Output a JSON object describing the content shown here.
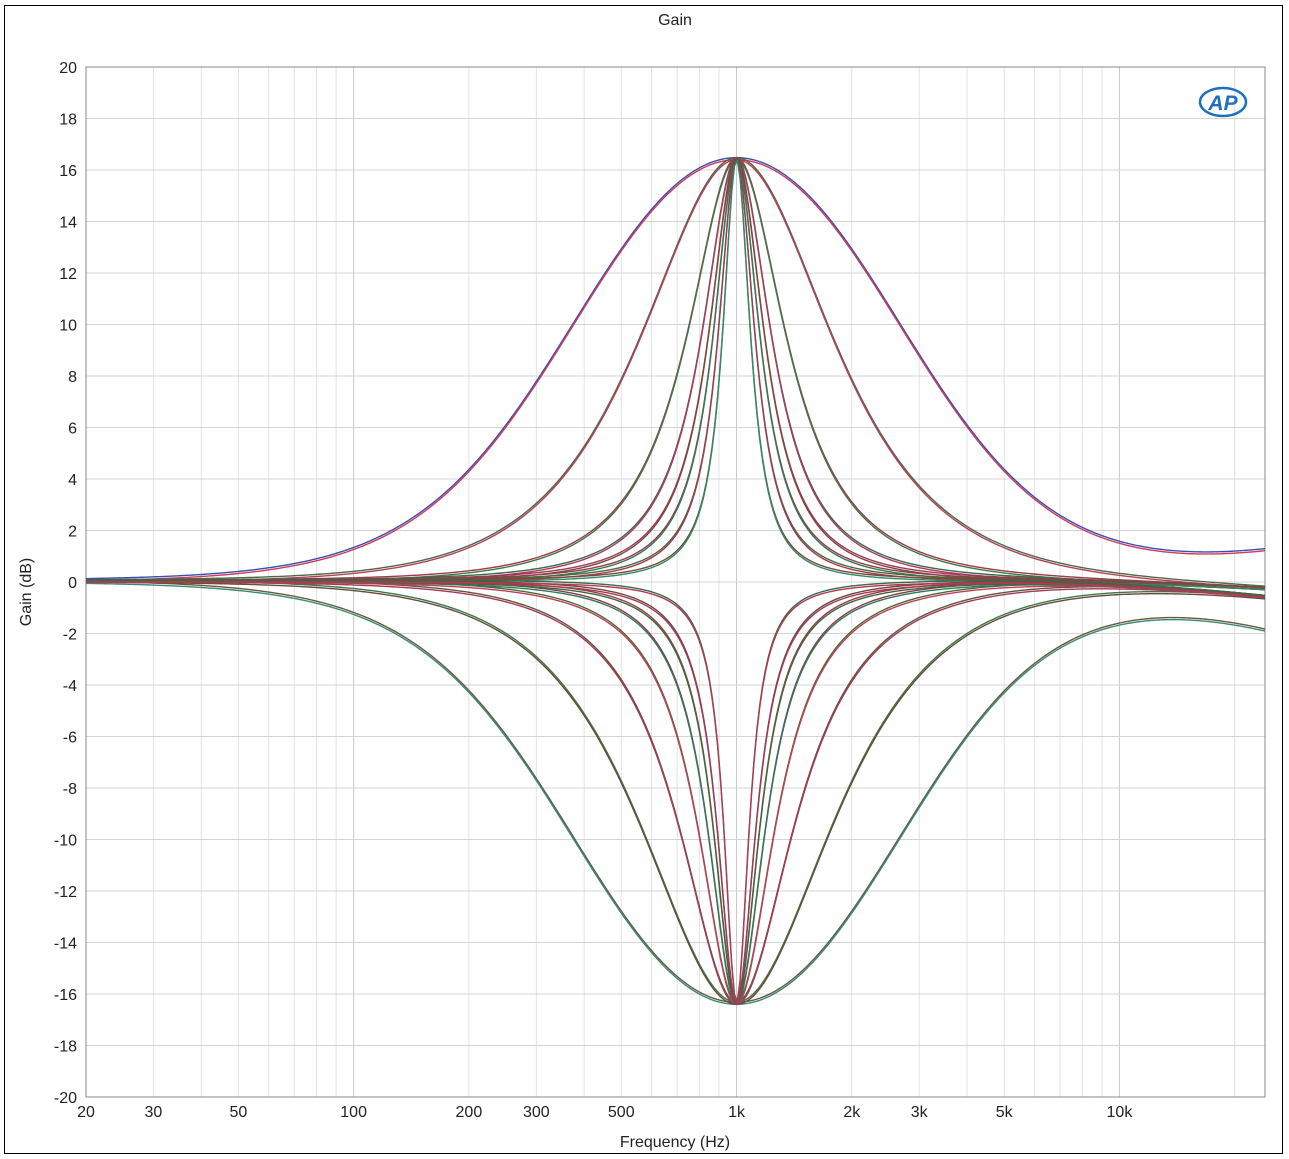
{
  "chart_data": {
    "type": "line",
    "title": "Gain",
    "xlabel": "Frequency (Hz)",
    "ylabel": "Gain (dB)",
    "x_scale": "log",
    "xlim": [
      20,
      24000
    ],
    "ylim": [
      -20,
      20
    ],
    "grid": true,
    "legend": "none",
    "center_frequency_hz": 1000,
    "boost_peak_db": 16.4,
    "cut_trough_db": -16.4,
    "x_ticks": [
      {
        "value": 20,
        "label": "20"
      },
      {
        "value": 30,
        "label": "30"
      },
      {
        "value": 50,
        "label": "50"
      },
      {
        "value": 100,
        "label": "100"
      },
      {
        "value": 200,
        "label": "200"
      },
      {
        "value": 300,
        "label": "300"
      },
      {
        "value": 500,
        "label": "500"
      },
      {
        "value": 1000,
        "label": "1k"
      },
      {
        "value": 2000,
        "label": "2k"
      },
      {
        "value": 3000,
        "label": "3k"
      },
      {
        "value": 5000,
        "label": "5k"
      },
      {
        "value": 10000,
        "label": "10k"
      }
    ],
    "y_ticks": [
      "20",
      "18",
      "16",
      "14",
      "12",
      "10",
      "8",
      "6",
      "4",
      "2",
      "0",
      "-2",
      "-4",
      "-6",
      "-8",
      "-10",
      "-12",
      "-14",
      "-16",
      "-18",
      "-20"
    ],
    "series": [
      {
        "kind": "boost",
        "q": 0.35,
        "color": "#d03a5a",
        "pair_color": "#3c4fb0",
        "offset_db": 0.0,
        "end_db": 1.0
      },
      {
        "kind": "boost",
        "q": 0.7,
        "color": "#b5405a",
        "pair_color": "#4e6a4a",
        "offset_db": 0.0,
        "end_db": -0.3
      },
      {
        "kind": "boost",
        "q": 1.4,
        "color": "#3d7a4a",
        "pair_color": "#a03a4a",
        "offset_db": 0.0,
        "end_db": -0.3
      },
      {
        "kind": "boost",
        "q": 2.0,
        "color": "#b03a5a",
        "pair_color": "#3c6a4a",
        "offset_db": 0.0,
        "end_db": -0.3
      },
      {
        "kind": "boost",
        "q": 2.5,
        "color": "#7a4a3a",
        "pair_color": "#9a3a5a",
        "offset_db": 0.0,
        "end_db": -0.3
      },
      {
        "kind": "boost",
        "q": 3.0,
        "color": "#2f7a5a",
        "pair_color": "#9a3a4a",
        "offset_db": 0.0,
        "end_db": -0.3
      },
      {
        "kind": "boost",
        "q": 3.8,
        "color": "#a13b55",
        "pair_color": "#4a6a3a",
        "offset_db": 0.0,
        "end_db": -0.3
      },
      {
        "kind": "boost",
        "q": 5.0,
        "color": "#2f8a66",
        "pair_color": "#7a4a3a",
        "offset_db": 0.0,
        "end_db": -0.3
      },
      {
        "kind": "cut",
        "q": 0.35,
        "color": "#3a8a7a",
        "pair_color": "#6a5a3a",
        "offset_db": 0.0,
        "end_db": -1.7
      },
      {
        "kind": "cut",
        "q": 0.7,
        "color": "#6a4a3a",
        "pair_color": "#3a7a4a",
        "offset_db": 0.0,
        "end_db": -0.6
      },
      {
        "kind": "cut",
        "q": 1.2,
        "color": "#a8385a",
        "pair_color": "#5a5a3a",
        "offset_db": 0.0,
        "end_db": -0.6
      },
      {
        "kind": "cut",
        "q": 1.8,
        "color": "#c0405a",
        "pair_color": "#4a6a3a",
        "offset_db": 0.0,
        "end_db": -0.6
      },
      {
        "kind": "cut",
        "q": 2.4,
        "color": "#2f7a5a",
        "pair_color": "#8a3a4a",
        "offset_db": 0.0,
        "end_db": -0.6
      },
      {
        "kind": "cut",
        "q": 3.0,
        "color": "#3a6a3a",
        "pair_color": "#a03a4a",
        "offset_db": 0.0,
        "end_db": -0.6
      },
      {
        "kind": "cut",
        "q": 3.6,
        "color": "#a03a5a",
        "pair_color": "#6a4a3a",
        "offset_db": 0.0,
        "end_db": -0.6
      },
      {
        "kind": "cut",
        "q": 5.5,
        "color": "#b23a52",
        "pair_color": "#3a6a4a",
        "offset_db": 0.0,
        "end_db": -0.6
      }
    ]
  },
  "logo": {
    "text": "AP",
    "color": "#1e6fc0"
  }
}
